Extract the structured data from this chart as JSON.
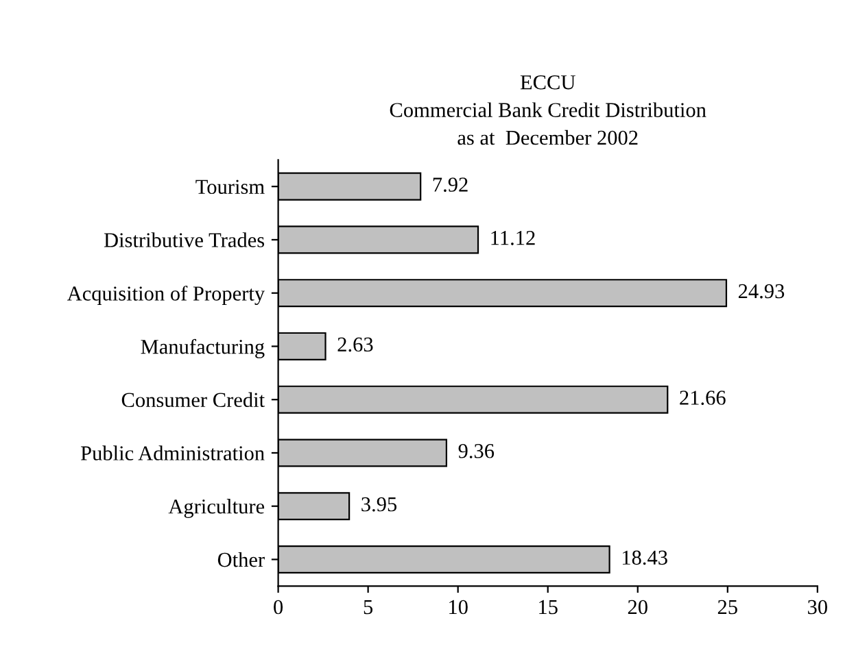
{
  "chart_data": {
    "type": "bar",
    "orientation": "horizontal",
    "title": "ECCU\nCommercial Bank Credit Distribution\nas at  December 2002",
    "categories": [
      "Tourism",
      "Distributive Trades",
      "Acquisition of Property",
      "Manufacturing",
      "Consumer Credit",
      "Public Administration",
      "Agriculture",
      "Other"
    ],
    "values": [
      7.92,
      11.12,
      24.93,
      2.63,
      21.66,
      9.36,
      3.95,
      18.43
    ],
    "color": "#c0c0c0",
    "data_labels": true,
    "xlim": [
      0,
      30
    ],
    "xticks": [
      0,
      5,
      10,
      15,
      20,
      25,
      30
    ],
    "grid": false,
    "legend": false
  }
}
